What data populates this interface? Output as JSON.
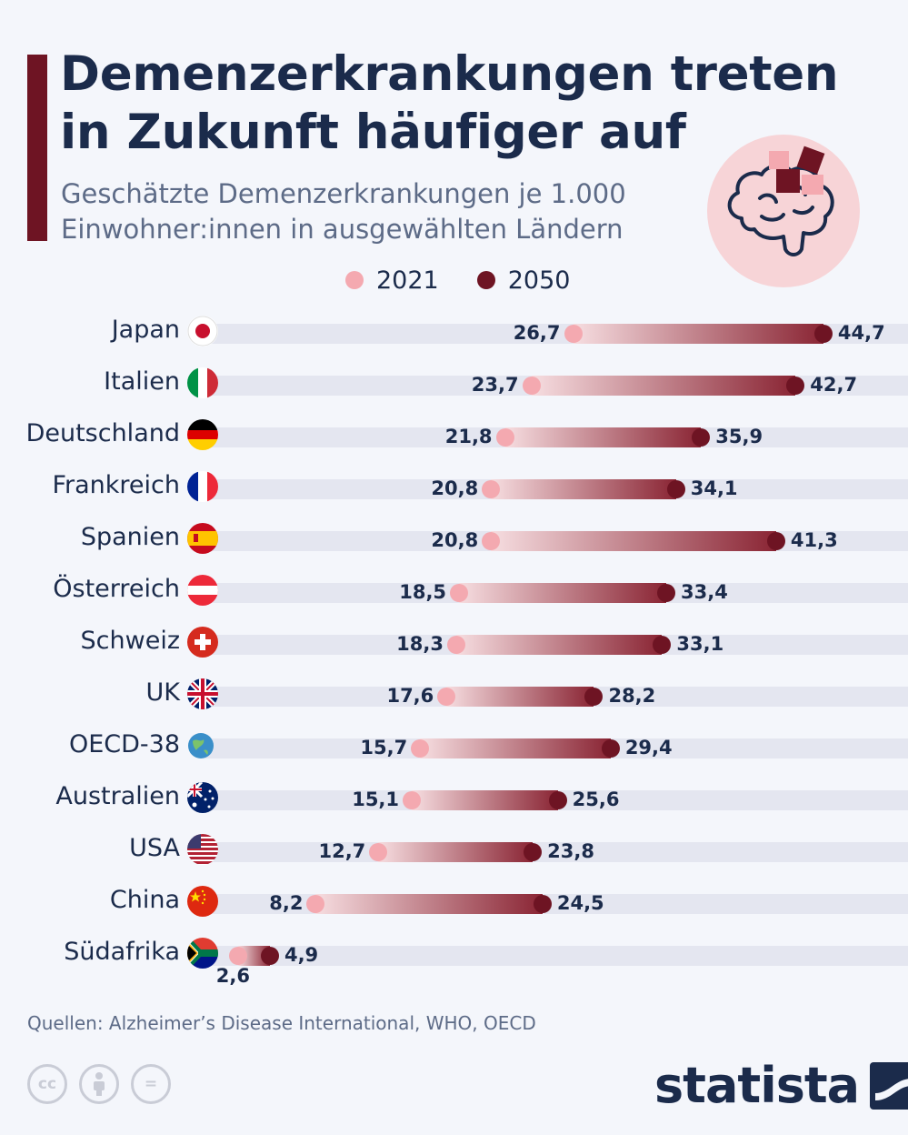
{
  "header": {
    "title": "Demenzerkrankungen treten in Zukunft häufiger auf",
    "subtitle": "Geschätzte Demenzerkrankungen je 1.000 Einwohner:innen in ausgewählten Ländern"
  },
  "colors": {
    "accent": "#6e1423",
    "dot_2021": "#f4a9b0",
    "dot_2050": "#6e1423",
    "track": "#e4e6f0",
    "text": "#1b2b4b"
  },
  "chart_data": {
    "type": "dumbbell",
    "title": "Demenzerkrankungen treten in Zukunft häufiger auf",
    "subtitle": "Geschätzte Demenzerkrankungen je 1.000 Einwohner:innen in ausgewählten Ländern",
    "xlim": [
      0,
      50
    ],
    "categories": [
      "Japan",
      "Italien",
      "Deutschland",
      "Frankreich",
      "Spanien",
      "Österreich",
      "Schweiz",
      "UK",
      "OECD-38",
      "Australien",
      "USA",
      "China",
      "Südafrika"
    ],
    "series": [
      {
        "name": "2021",
        "values": [
          26.7,
          23.7,
          21.8,
          20.8,
          20.8,
          18.5,
          18.3,
          17.6,
          15.7,
          15.1,
          12.7,
          8.2,
          2.6
        ]
      },
      {
        "name": "2050",
        "values": [
          44.7,
          42.7,
          35.9,
          34.1,
          41.3,
          33.4,
          33.1,
          28.2,
          29.4,
          25.6,
          23.8,
          24.5,
          4.9
        ]
      }
    ],
    "labels_2021": [
      "26,7",
      "23,7",
      "21,8",
      "20,8",
      "20,8",
      "18,5",
      "18,3",
      "17,6",
      "15,7",
      "15,1",
      "12,7",
      "8,2",
      "2,6"
    ],
    "labels_2050": [
      "44,7",
      "42,7",
      "35,9",
      "34,1",
      "41,3",
      "33,4",
      "33,1",
      "28,2",
      "29,4",
      "25,6",
      "23,8",
      "24,5",
      "4,9"
    ],
    "flags": [
      "japan-flag-icon",
      "italy-flag-icon",
      "germany-flag-icon",
      "france-flag-icon",
      "spain-flag-icon",
      "austria-flag-icon",
      "switzerland-flag-icon",
      "uk-flag-icon",
      "oecd-globe-icon",
      "australia-flag-icon",
      "usa-flag-icon",
      "china-flag-icon",
      "south-africa-flag-icon"
    ],
    "legend": [
      "2021",
      "2050"
    ],
    "legend_position": "top"
  },
  "footer": {
    "source": "Quellen: Alzheimer’s Disease International, WHO, OECD",
    "license_cc": "cc",
    "license_eq": "=",
    "brand": "statista"
  }
}
